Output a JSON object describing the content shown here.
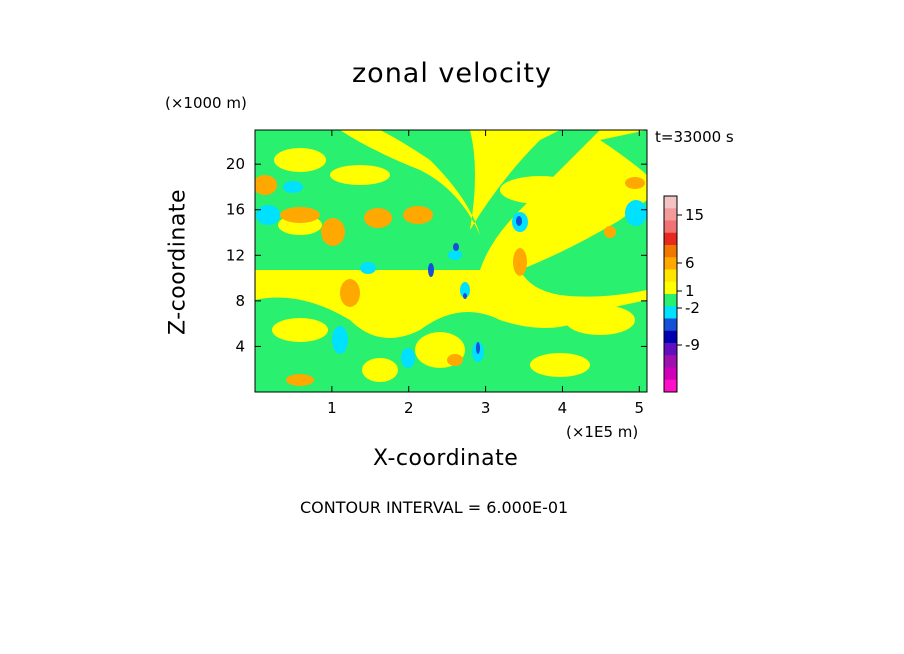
{
  "chart_data": {
    "type": "heatmap",
    "title": "zonal velocity",
    "xlabel": "X-coordinate",
    "ylabel": "Z-coordinate",
    "x_unit": "(×1E5 m)",
    "y_unit": "(×1000 m)",
    "timestamp": "t=33000 s",
    "xlim": [
      0,
      5.1
    ],
    "ylim": [
      0,
      23
    ],
    "x_ticks": [
      1,
      2,
      3,
      4,
      5
    ],
    "y_ticks": [
      4,
      8,
      12,
      16,
      20
    ],
    "footer": "CONTOUR INTERVAL = 6.000E-01",
    "colorbar": {
      "tick_labels": [
        "15",
        "6",
        "1",
        "-2",
        "-9"
      ],
      "colors": [
        "#f3c2c2",
        "#f39a9a",
        "#f07272",
        "#e82a1e",
        "#f07800",
        "#ffa800",
        "#ffe600",
        "#ffff00",
        "#2af070",
        "#00e0ff",
        "#1450d8",
        "#0000b0",
        "#6010c0",
        "#a010b0",
        "#d000b8",
        "#ff10c8"
      ]
    }
  }
}
